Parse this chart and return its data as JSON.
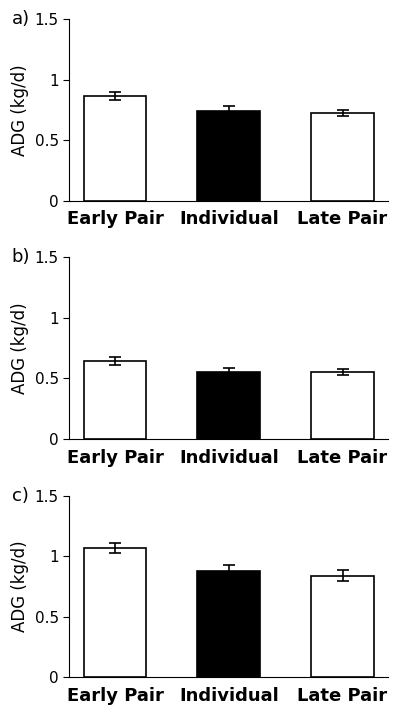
{
  "panels": [
    {
      "label": "a)",
      "categories": [
        "Early Pair",
        "Individual",
        "Late Pair"
      ],
      "values": [
        0.865,
        0.745,
        0.725
      ],
      "errors": [
        0.03,
        0.035,
        0.025
      ],
      "colors": [
        "#ffffff",
        "#000000",
        "#ffffff"
      ],
      "edgecolors": [
        "#000000",
        "#000000",
        "#000000"
      ],
      "ylim": [
        0,
        1.5
      ],
      "yticks": [
        0,
        0.5,
        1.0,
        1.5
      ],
      "ytick_labels": [
        "0",
        "0.5",
        "1",
        "1.5"
      ],
      "ylabel": "ADG (kg/d)"
    },
    {
      "label": "b)",
      "categories": [
        "Early Pair",
        "Individual",
        "Late Pair"
      ],
      "values": [
        0.645,
        0.555,
        0.55
      ],
      "errors": [
        0.03,
        0.03,
        0.025
      ],
      "colors": [
        "#ffffff",
        "#000000",
        "#ffffff"
      ],
      "edgecolors": [
        "#000000",
        "#000000",
        "#000000"
      ],
      "ylim": [
        0,
        1.5
      ],
      "yticks": [
        0,
        0.5,
        1.0,
        1.5
      ],
      "ytick_labels": [
        "0",
        "0.5",
        "1",
        "1.5"
      ],
      "ylabel": "ADG (kg/d)"
    },
    {
      "label": "c)",
      "categories": [
        "Early Pair",
        "Individual",
        "Late Pair"
      ],
      "values": [
        1.065,
        0.875,
        0.84
      ],
      "errors": [
        0.04,
        0.055,
        0.045
      ],
      "colors": [
        "#ffffff",
        "#000000",
        "#ffffff"
      ],
      "edgecolors": [
        "#000000",
        "#000000",
        "#000000"
      ],
      "ylim": [
        0,
        1.5
      ],
      "yticks": [
        0,
        0.5,
        1.0,
        1.5
      ],
      "ytick_labels": [
        "0",
        "0.5",
        "1",
        "1.5"
      ],
      "ylabel": "ADG (kg/d)"
    }
  ],
  "background_color": "#ffffff",
  "bar_width": 0.55,
  "label_fontsize": 13,
  "tick_fontsize": 11,
  "ylabel_fontsize": 12,
  "panel_label_fontsize": 13
}
